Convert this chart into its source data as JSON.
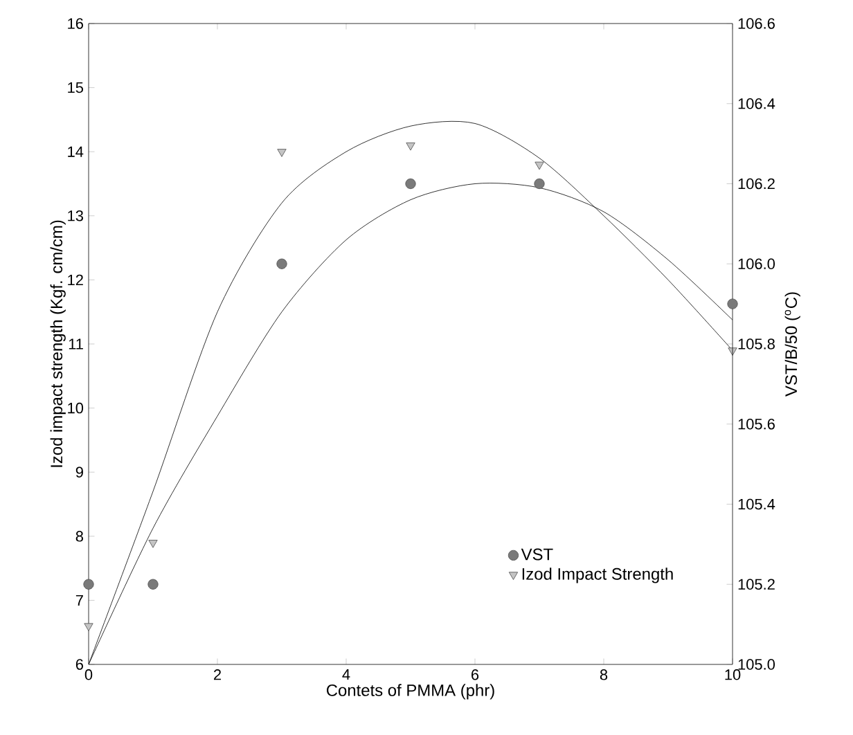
{
  "chart_data": {
    "type": "scatter",
    "xlabel": "Contets of PMMA (phr)",
    "ylabel": "Izod impact strength (Kgf. cm/cm)",
    "y2label": "VST/B/50 ($^{o}$C)",
    "xlim": [
      0,
      10
    ],
    "xticks": [
      0,
      2,
      4,
      6,
      8,
      10
    ],
    "ylim": [
      6,
      16
    ],
    "yticks": [
      6,
      7,
      8,
      9,
      10,
      11,
      12,
      13,
      14,
      15,
      16
    ],
    "y2lim": [
      105.0,
      106.6
    ],
    "y2ticks": [
      {
        "value": 105.0,
        "label": "105.0"
      },
      105.2,
      105.4,
      105.6,
      105.8,
      {
        "value": 106.0,
        "label": "106.0"
      },
      106.2,
      106.4,
      106.6
    ],
    "legend": "bottom right",
    "grid": false,
    "series": [
      {
        "name": "VST",
        "axis": "y2",
        "marker": "circle",
        "color": "#7a7a7a",
        "x": [
          0,
          1,
          3,
          5,
          7,
          10
        ],
        "values": [
          105.2,
          105.2,
          106.0,
          106.2,
          106.2,
          105.9
        ]
      },
      {
        "name": "Izod Impact Strength",
        "marker": "triangle",
        "color": "#c4c4c4",
        "x": [
          0,
          1,
          3,
          5,
          7,
          10
        ],
        "values": [
          6.6,
          7.9,
          14.0,
          14.1,
          13.8,
          10.9
        ]
      },
      {
        "type": "line",
        "axis": "y2",
        "marker": "none",
        "color": "#000000",
        "x": [
          0,
          1,
          2,
          3,
          4,
          5,
          6,
          7,
          8,
          9,
          10
        ],
        "values": [
          105.0,
          105.34,
          105.62,
          105.88,
          106.06,
          106.16,
          106.2,
          106.19,
          106.13,
          106.01,
          105.86
        ]
      },
      {
        "type": "line",
        "marker": "none",
        "color": "#000000",
        "x": [
          0,
          1,
          2,
          3,
          4,
          5,
          6,
          7,
          8,
          9,
          10
        ],
        "values": [
          6.0,
          8.7,
          11.5,
          13.2,
          14.0,
          14.4,
          14.44,
          13.9,
          13.0,
          12.0,
          10.9
        ]
      }
    ]
  }
}
